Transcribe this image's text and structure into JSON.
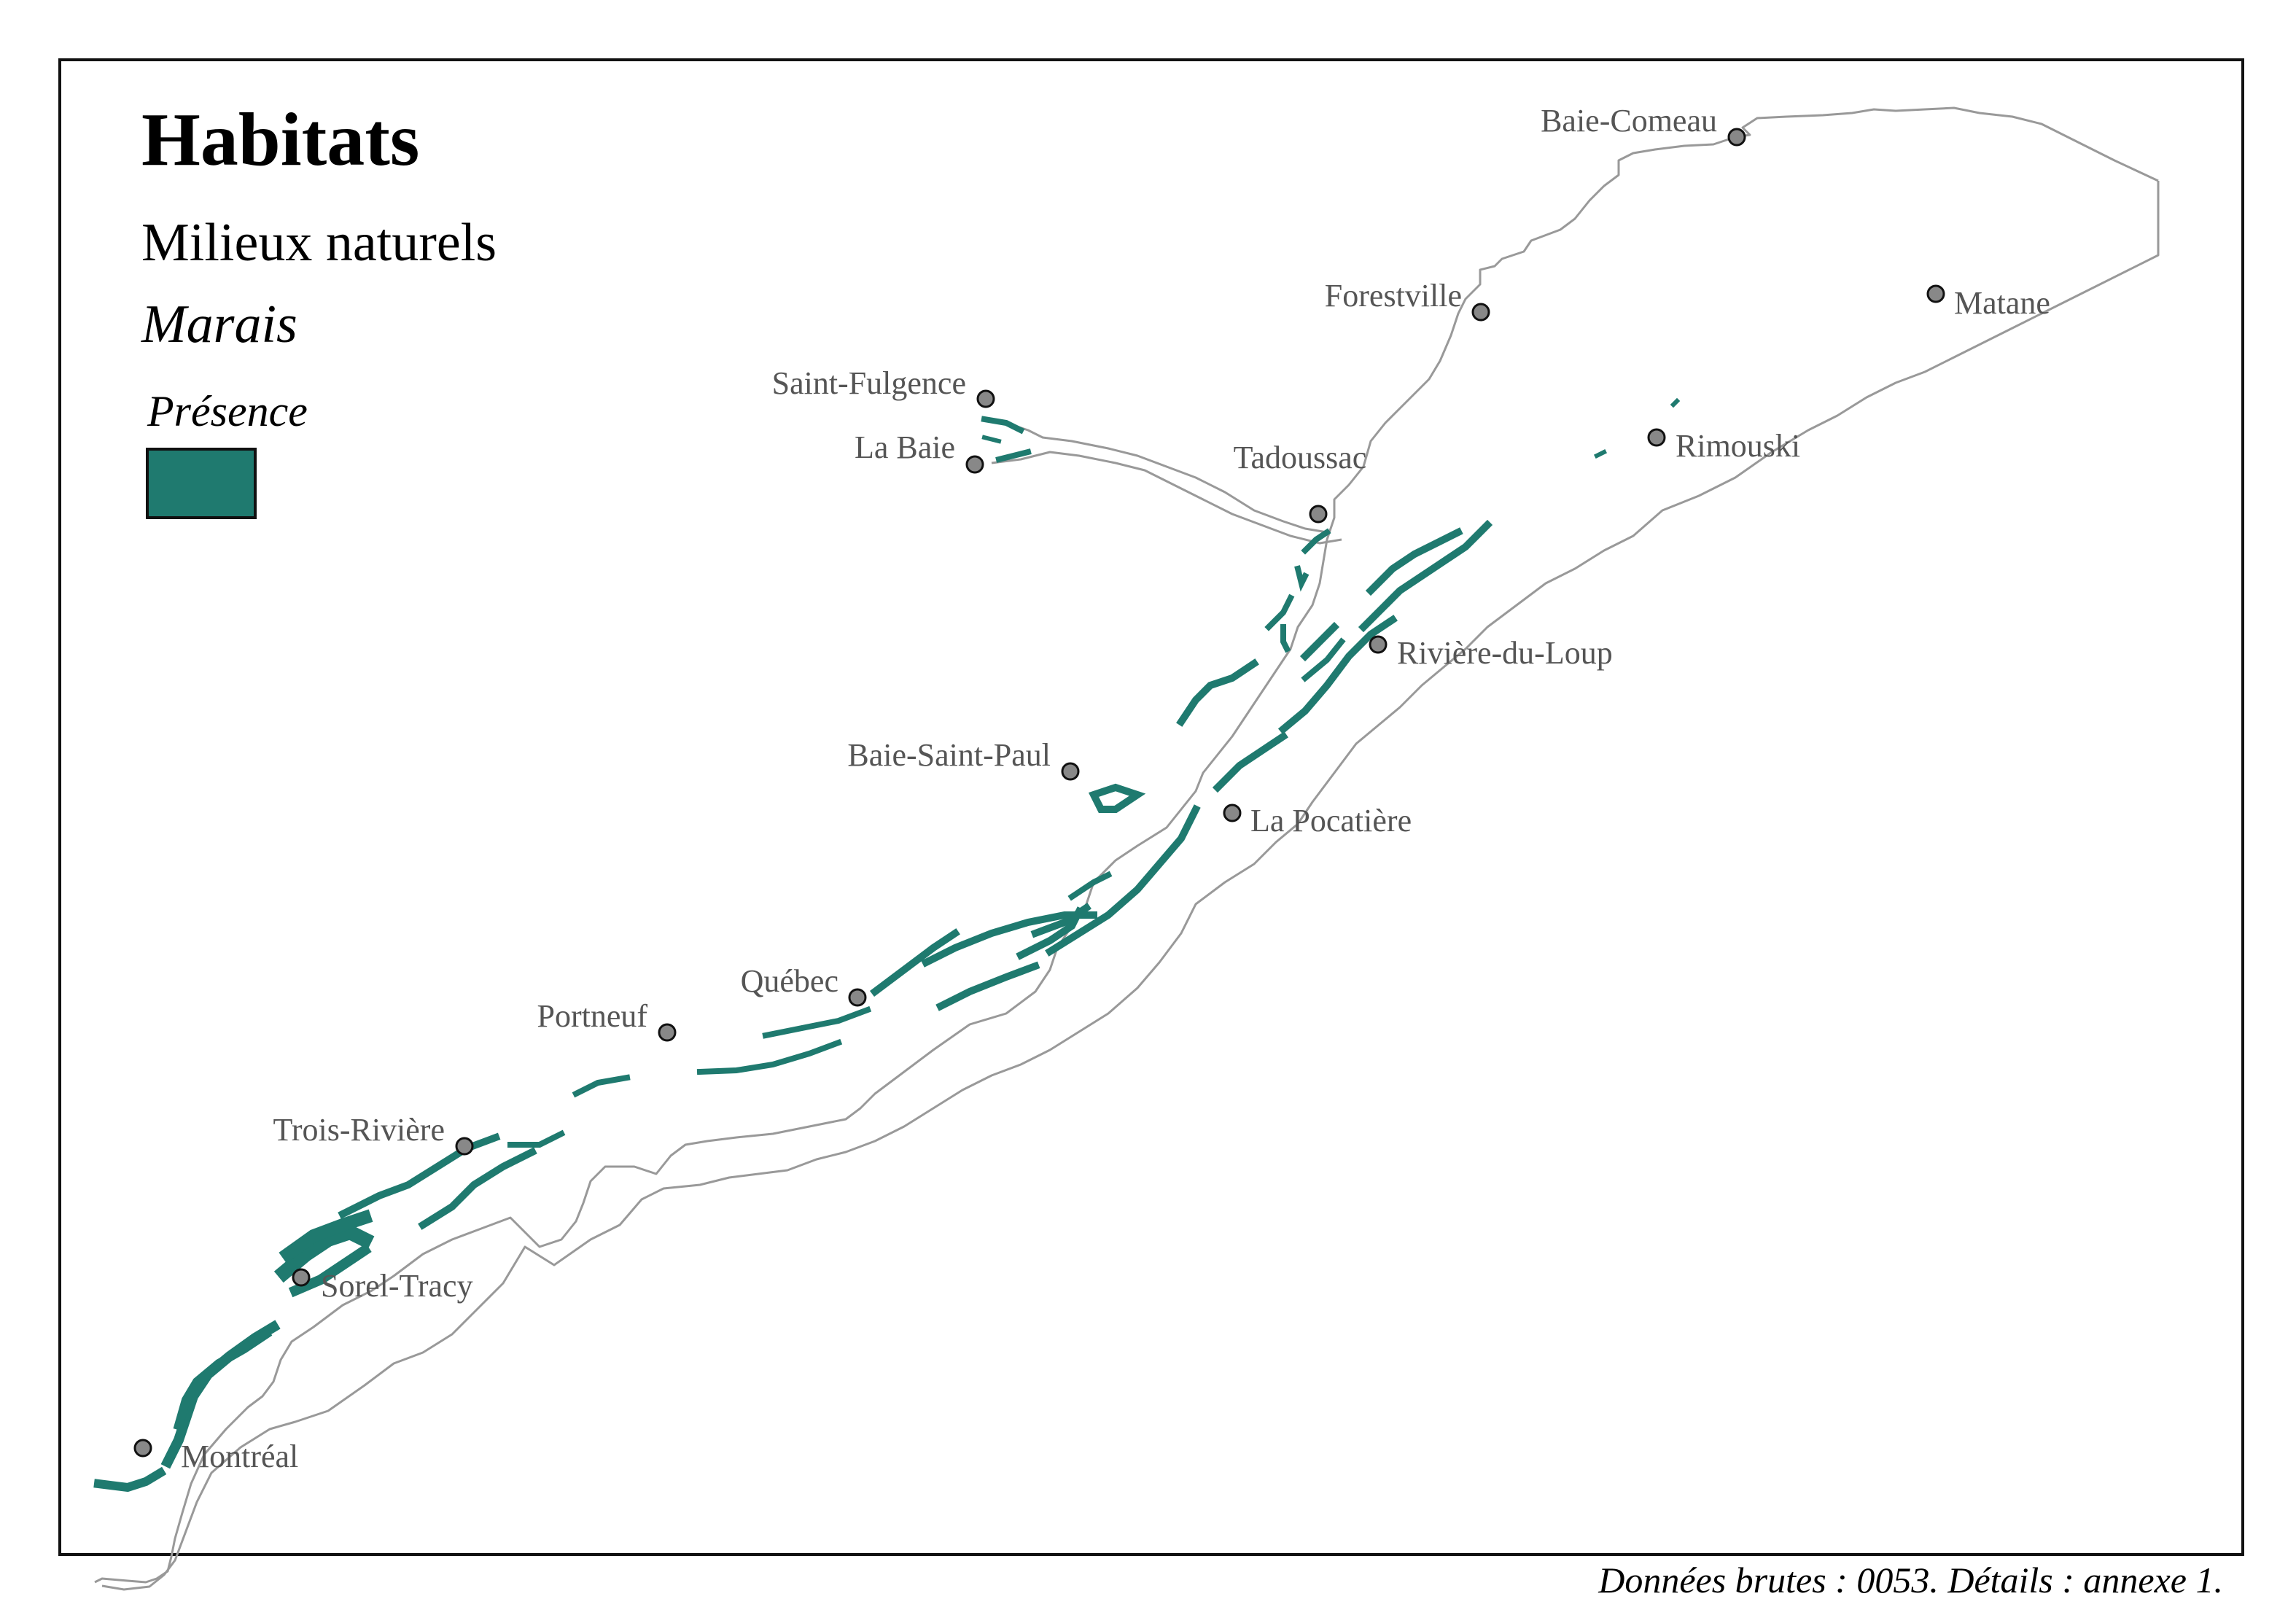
{
  "legend": {
    "title": "Habitats",
    "category": "Milieux naturels",
    "habitat": "Marais",
    "presence_label": "Présence",
    "swatch_color": "#1f7a6f"
  },
  "caption": "Données brutes : 0053. Détails : annexe 1.",
  "colors": {
    "marsh": "#1f7a6f",
    "coast": "#999999",
    "city_fill": "#888888",
    "city_stroke": "#111111",
    "label": "#555555"
  },
  "cities": [
    {
      "name": "Baie-Comeau"
    },
    {
      "name": "Forestville"
    },
    {
      "name": "Matane"
    },
    {
      "name": "Saint-Fulgence"
    },
    {
      "name": "La Baie"
    },
    {
      "name": "Tadoussac"
    },
    {
      "name": "Rimouski"
    },
    {
      "name": "Rivière-du-Loup"
    },
    {
      "name": "Baie-Saint-Paul"
    },
    {
      "name": "La Pocatière"
    },
    {
      "name": "Québec"
    },
    {
      "name": "Portneuf"
    },
    {
      "name": "Trois-Rivière"
    },
    {
      "name": "Sorel-Tracy"
    },
    {
      "name": "Montréal"
    }
  ]
}
